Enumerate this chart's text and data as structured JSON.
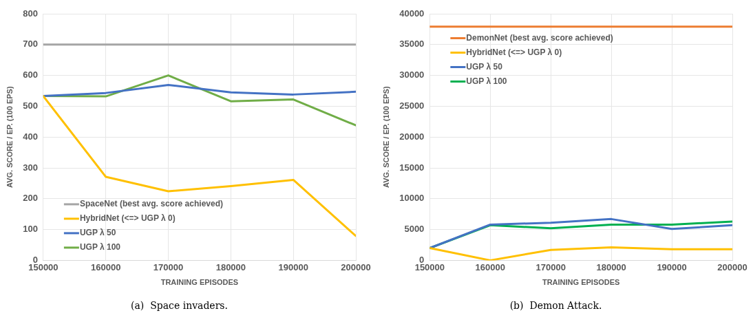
{
  "chart_data": [
    {
      "type": "line",
      "title": "(a)  Space invaders.",
      "xlabel": "TRAINING EPISODES",
      "ylabel": "AVG. SCORE / EP. (100 EPS)",
      "x": [
        150000,
        160000,
        170000,
        180000,
        190000,
        200000
      ],
      "xlim": [
        150000,
        200000
      ],
      "xticks": [
        150000,
        160000,
        170000,
        180000,
        190000,
        200000
      ],
      "ylim": [
        0,
        800
      ],
      "yticks": [
        0,
        100,
        200,
        300,
        400,
        500,
        600,
        700,
        800
      ],
      "grid": true,
      "legend": "bottom left",
      "marker": "none",
      "series": [
        {
          "name": "SpaceNet (best avg. score achieved)",
          "color": "#a5a5a5",
          "values": [
            700,
            700,
            700,
            700,
            700,
            700
          ]
        },
        {
          "name": "HybridNet (<=> UGP λ 0)",
          "color": "#ffc000",
          "values": [
            533,
            271,
            224,
            241,
            261,
            79
          ]
        },
        {
          "name": "UGP λ 50",
          "color": "#4472c4",
          "values": [
            533,
            543,
            569,
            545,
            538,
            547
          ]
        },
        {
          "name": "UGP λ 100",
          "color": "#70ad47",
          "values": [
            533,
            532,
            600,
            516,
            522,
            438
          ]
        }
      ]
    },
    {
      "type": "line",
      "title": "(b)  Demon Attack.",
      "xlabel": "TRAINING EPISODES",
      "ylabel": "AVG. SCORE / EP. (100 EPS)",
      "x": [
        150000,
        160000,
        170000,
        180000,
        190000,
        200000
      ],
      "xlim": [
        150000,
        200000
      ],
      "xticks": [
        150000,
        160000,
        170000,
        180000,
        190000,
        200000
      ],
      "ylim": [
        0,
        40000
      ],
      "yticks": [
        0,
        5000,
        10000,
        15000,
        20000,
        25000,
        30000,
        35000,
        40000
      ],
      "grid": true,
      "legend": "top left",
      "marker": "none",
      "series": [
        {
          "name": "DemonNet (best avg. score achieved)",
          "color": "#ed7d31",
          "values": [
            37900,
            37900,
            37900,
            37900,
            37900,
            37900
          ]
        },
        {
          "name": "HybridNet (<=> UGP λ 0)",
          "color": "#ffc000",
          "values": [
            2000,
            0,
            1700,
            2100,
            1800,
            1800
          ]
        },
        {
          "name": "UGP λ 50",
          "color": "#4472c4",
          "values": [
            2000,
            5800,
            6100,
            6700,
            5100,
            5700
          ]
        },
        {
          "name": "UGP λ 100",
          "color": "#00b050",
          "values": [
            2000,
            5700,
            5200,
            5800,
            5800,
            6300
          ]
        }
      ]
    }
  ]
}
